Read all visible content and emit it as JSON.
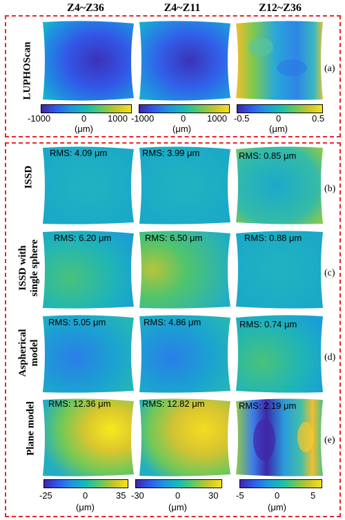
{
  "columns": [
    "Z4~Z36",
    "Z4~Z11",
    "Z12~Z36"
  ],
  "section_a": {
    "row_label": "LUPHOScan",
    "letter": "(a)",
    "colorbars": [
      {
        "ticks": [
          "-1000",
          "0",
          "1000"
        ],
        "unit": "(μm)"
      },
      {
        "ticks": [
          "-1000",
          "0",
          "1000"
        ],
        "unit": "(μm)"
      },
      {
        "ticks": [
          "-0.5",
          "0",
          "0.5"
        ],
        "unit": "(μm)"
      }
    ]
  },
  "rows": [
    {
      "label_lines": [
        "ISSD"
      ],
      "letter": "(b)",
      "rms": [
        "RMS:  4.09 μm",
        "RMS:  3.99 μm",
        "RMS:  0.85 μm"
      ]
    },
    {
      "label_lines": [
        "ISSD with",
        "single sphere"
      ],
      "letter": "(c)",
      "rms": [
        "RMS:  6.20 μm",
        "RMS:  6.50 μm",
        "RMS:  0.88 μm"
      ]
    },
    {
      "label_lines": [
        "Aspherical",
        "model"
      ],
      "letter": "(d)",
      "rms": [
        "RMS:  5.05 μm",
        "RMS:  4.86 μm",
        "RMS:  0.74 μm"
      ]
    },
    {
      "label_lines": [
        "Plane model"
      ],
      "letter": "(e)",
      "rms": [
        "RMS:  12.36 μm",
        "RMS:  12.82 μm",
        "RMS:  2.19 μm"
      ]
    }
  ],
  "bottom_colorbars": [
    {
      "ticks": [
        "-25",
        "0",
        "35"
      ],
      "unit": "(μm)"
    },
    {
      "ticks": [
        "-30",
        "0",
        "30"
      ],
      "unit": "(μm)"
    },
    {
      "ticks": [
        "-5",
        "0",
        "5"
      ],
      "unit": "(μm)"
    }
  ],
  "colors": {
    "frame": "#e4262c",
    "bg": "#ffffff"
  }
}
